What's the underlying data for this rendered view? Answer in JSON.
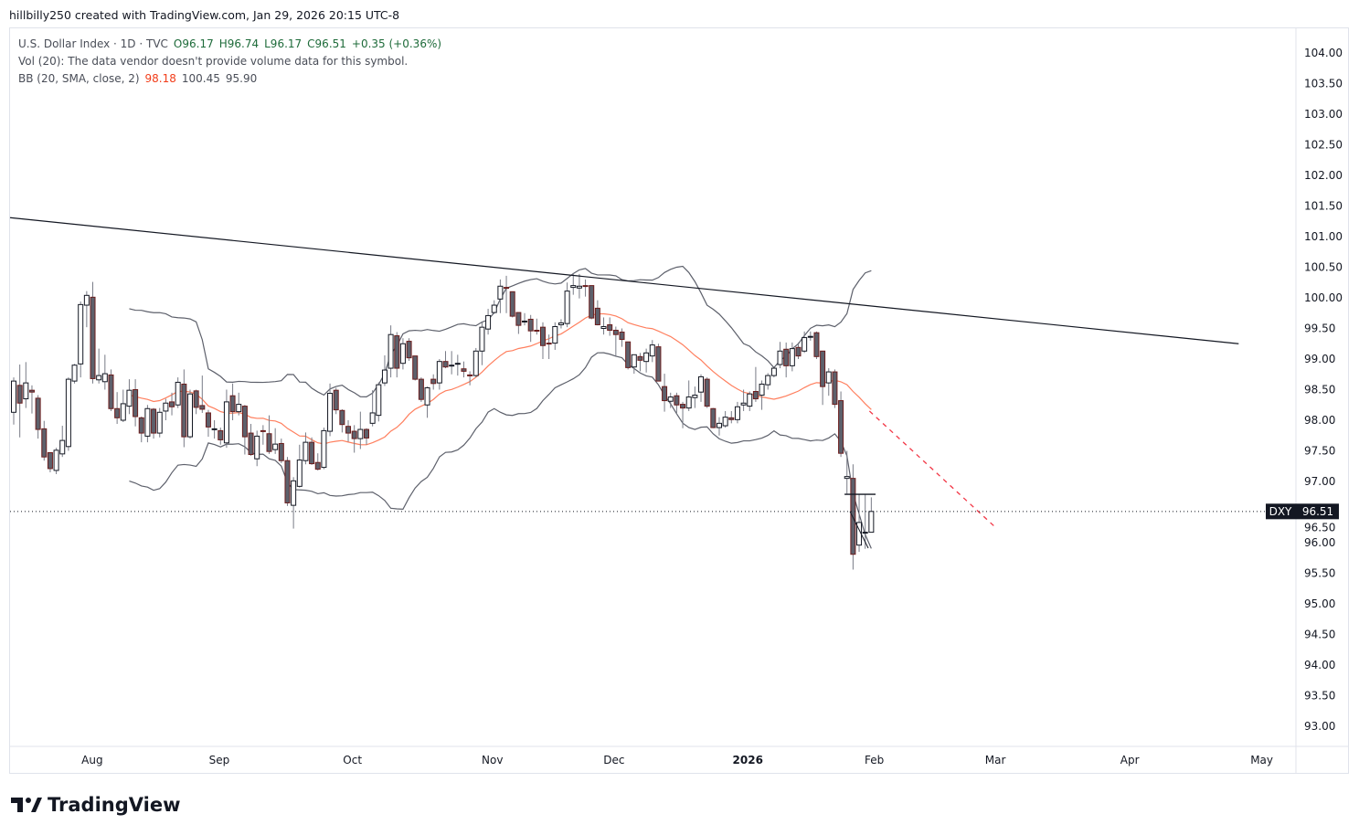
{
  "credit": "hillbilly250 created with TradingView.com, Jan 29, 2026 20:15 UTC-8",
  "legend": {
    "symbol": "U.S. Dollar Index · 1D · TVC",
    "open": "O96.17",
    "high": "H96.74",
    "low": "L96.17",
    "close": "C96.51",
    "change": "+0.35 (+0.36%)",
    "vol": "Vol (20): The data vendor doesn't provide volume data for this symbol.",
    "bb_label": "BB (20, SMA, close, 2)",
    "bb_basis": "98.18",
    "bb_upper": "100.45",
    "bb_lower": "95.90"
  },
  "price_label": {
    "symbol": "DXY",
    "value": "96.51"
  },
  "logo": "TradingView",
  "colors": {
    "up_fill": "#ffffff",
    "up_border": "#131722",
    "down_fill": "#5d606b",
    "down_border": "#6b1d1d",
    "wick": "#787b86",
    "bb_band": "#5d606b",
    "bb_basis": "#ff7f5e",
    "trendline": "#131722",
    "projection": "#f23645"
  },
  "chart_data": {
    "type": "candlestick",
    "title": "U.S. Dollar Index · 1D · TVC",
    "ylim": [
      92.6,
      104.4
    ],
    "y_ticks": [
      "104.00",
      "103.50",
      "103.00",
      "102.50",
      "102.00",
      "101.50",
      "101.00",
      "100.50",
      "100.00",
      "99.50",
      "99.00",
      "98.50",
      "98.00",
      "97.50",
      "97.00",
      "96.50",
      "96.00",
      "95.50",
      "95.00",
      "94.50",
      "94.00",
      "93.50",
      "93.00"
    ],
    "x_ticks": [
      {
        "label": "Aug",
        "bar": 12.9,
        "bold": false
      },
      {
        "label": "Sep",
        "bar": 33.8,
        "bold": false
      },
      {
        "label": "Oct",
        "bar": 55.7,
        "bold": false
      },
      {
        "label": "Nov",
        "bar": 78.7,
        "bold": false
      },
      {
        "label": "Dec",
        "bar": 98.7,
        "bold": false
      },
      {
        "label": "2026",
        "bar": 120.7,
        "bold": true
      },
      {
        "label": "Feb",
        "bar": 141.5,
        "bold": false
      },
      {
        "label": "Mar",
        "bar": 161.4,
        "bold": false
      },
      {
        "label": "Apr",
        "bar": 183.5,
        "bold": false
      },
      {
        "label": "May",
        "bar": 205.2,
        "bold": false
      }
    ],
    "bollinger": {
      "period": 20,
      "stddev": 2
    },
    "ohlc": [
      [
        98.13,
        98.7,
        97.93,
        98.64
      ],
      [
        98.57,
        98.91,
        97.72,
        98.28
      ],
      [
        98.35,
        98.95,
        98.2,
        98.61
      ],
      [
        98.49,
        98.57,
        98.11,
        98.46
      ],
      [
        98.36,
        98.41,
        97.7,
        97.85
      ],
      [
        97.86,
        97.99,
        97.34,
        97.4
      ],
      [
        97.47,
        97.47,
        97.15,
        97.21
      ],
      [
        97.18,
        97.55,
        97.12,
        97.51
      ],
      [
        97.45,
        97.91,
        97.4,
        97.67
      ],
      [
        97.57,
        98.7,
        97.5,
        98.67
      ],
      [
        98.64,
        98.92,
        98.6,
        98.9
      ],
      [
        98.92,
        99.94,
        98.7,
        99.89
      ],
      [
        99.88,
        100.11,
        99.52,
        100.04
      ],
      [
        100.01,
        100.26,
        98.6,
        98.68
      ],
      [
        98.66,
        99.17,
        98.6,
        98.73
      ],
      [
        98.63,
        99.07,
        98.5,
        98.76
      ],
      [
        98.74,
        98.83,
        98.15,
        98.19
      ],
      [
        98.19,
        98.46,
        97.94,
        98.04
      ],
      [
        98.0,
        98.5,
        97.97,
        98.27
      ],
      [
        98.23,
        98.67,
        98.1,
        98.49
      ],
      [
        98.5,
        98.67,
        97.9,
        98.06
      ],
      [
        98.04,
        98.06,
        97.64,
        97.79
      ],
      [
        97.74,
        98.25,
        97.64,
        98.19
      ],
      [
        98.18,
        98.2,
        97.7,
        97.79
      ],
      [
        97.79,
        98.2,
        97.72,
        98.13
      ],
      [
        98.15,
        98.35,
        98.0,
        98.28
      ],
      [
        98.3,
        98.45,
        98.08,
        98.22
      ],
      [
        98.25,
        98.7,
        98.2,
        98.62
      ],
      [
        98.59,
        98.83,
        97.56,
        97.73
      ],
      [
        97.73,
        98.5,
        97.7,
        98.43
      ],
      [
        98.48,
        98.5,
        98.1,
        98.21
      ],
      [
        98.24,
        98.73,
        98.12,
        98.18
      ],
      [
        98.12,
        98.17,
        97.73,
        97.89
      ],
      [
        97.86,
        98.0,
        97.7,
        97.86
      ],
      [
        97.83,
        97.88,
        97.6,
        97.68
      ],
      [
        97.63,
        98.5,
        97.55,
        98.3
      ],
      [
        98.4,
        98.6,
        98.0,
        98.14
      ],
      [
        98.14,
        98.45,
        98.08,
        98.26
      ],
      [
        98.23,
        98.25,
        97.44,
        97.73
      ],
      [
        97.79,
        97.94,
        97.42,
        97.44
      ],
      [
        97.37,
        97.83,
        97.25,
        97.74
      ],
      [
        97.83,
        97.92,
        97.6,
        97.82
      ],
      [
        97.78,
        98.08,
        97.45,
        97.49
      ],
      [
        97.52,
        97.87,
        97.45,
        97.61
      ],
      [
        97.62,
        97.7,
        97.3,
        97.34
      ],
      [
        97.34,
        97.4,
        96.6,
        96.65
      ],
      [
        96.61,
        97.07,
        96.23,
        97.01
      ],
      [
        96.92,
        97.6,
        96.9,
        97.35
      ],
      [
        97.34,
        97.8,
        97.28,
        97.64
      ],
      [
        97.64,
        97.72,
        97.27,
        97.29
      ],
      [
        97.31,
        97.46,
        97.18,
        97.2
      ],
      [
        97.23,
        97.88,
        97.2,
        97.83
      ],
      [
        97.82,
        98.6,
        97.74,
        98.44
      ],
      [
        98.49,
        98.53,
        98.1,
        98.17
      ],
      [
        98.16,
        98.18,
        97.8,
        97.93
      ],
      [
        97.9,
        98.0,
        97.65,
        97.79
      ],
      [
        97.82,
        97.92,
        97.47,
        97.7
      ],
      [
        97.7,
        98.14,
        97.53,
        97.85
      ],
      [
        97.85,
        97.87,
        97.6,
        97.71
      ],
      [
        97.95,
        98.49,
        97.9,
        98.12
      ],
      [
        98.08,
        98.62,
        97.98,
        98.58
      ],
      [
        98.61,
        99.06,
        98.56,
        98.82
      ],
      [
        98.85,
        99.55,
        98.7,
        99.4
      ],
      [
        99.38,
        99.44,
        98.7,
        98.85
      ],
      [
        98.93,
        99.34,
        98.83,
        99.25
      ],
      [
        99.29,
        99.34,
        98.97,
        99.02
      ],
      [
        99.05,
        99.05,
        98.65,
        98.67
      ],
      [
        98.67,
        98.7,
        98.3,
        98.34
      ],
      [
        98.25,
        98.55,
        98.04,
        98.53
      ],
      [
        98.67,
        98.75,
        98.5,
        98.6
      ],
      [
        98.61,
        99.0,
        98.5,
        98.96
      ],
      [
        98.96,
        99.13,
        98.85,
        98.87
      ],
      [
        98.9,
        99.13,
        98.75,
        98.9
      ],
      [
        98.93,
        99.07,
        98.73,
        98.93
      ],
      [
        98.84,
        98.96,
        98.7,
        98.8
      ],
      [
        98.74,
        98.8,
        98.57,
        98.73
      ],
      [
        98.73,
        99.18,
        98.7,
        99.13
      ],
      [
        99.13,
        99.6,
        98.9,
        99.52
      ],
      [
        99.49,
        99.82,
        99.4,
        99.71
      ],
      [
        99.76,
        99.96,
        99.74,
        99.88
      ],
      [
        99.98,
        100.3,
        99.75,
        100.19
      ],
      [
        100.17,
        100.36,
        99.75,
        100.16
      ],
      [
        100.1,
        100.1,
        99.68,
        99.7
      ],
      [
        99.76,
        99.76,
        99.41,
        99.55
      ],
      [
        99.62,
        99.75,
        99.55,
        99.62
      ],
      [
        99.65,
        99.72,
        99.28,
        99.46
      ],
      [
        99.47,
        99.66,
        99.4,
        99.46
      ],
      [
        99.52,
        99.6,
        99.0,
        99.22
      ],
      [
        99.26,
        99.4,
        99.0,
        99.25
      ],
      [
        99.26,
        99.6,
        99.15,
        99.53
      ],
      [
        99.56,
        99.65,
        99.5,
        99.59
      ],
      [
        99.58,
        100.25,
        99.52,
        100.11
      ],
      [
        100.17,
        100.4,
        100.05,
        100.2
      ],
      [
        100.16,
        100.39,
        99.99,
        100.19
      ],
      [
        100.2,
        100.3,
        100.02,
        100.19
      ],
      [
        100.2,
        100.2,
        99.65,
        99.67
      ],
      [
        99.83,
        99.96,
        99.55,
        99.56
      ],
      [
        99.5,
        99.68,
        99.4,
        99.53
      ],
      [
        99.56,
        99.68,
        99.38,
        99.47
      ],
      [
        99.47,
        99.53,
        99.05,
        99.4
      ],
      [
        99.44,
        99.5,
        99.2,
        99.32
      ],
      [
        99.28,
        99.28,
        98.83,
        98.86
      ],
      [
        98.87,
        99.07,
        98.76,
        99.07
      ],
      [
        99.04,
        99.1,
        98.8,
        98.98
      ],
      [
        98.96,
        99.17,
        98.78,
        99.1
      ],
      [
        99.05,
        99.31,
        98.95,
        99.23
      ],
      [
        99.2,
        99.25,
        98.64,
        98.64
      ],
      [
        98.55,
        98.76,
        98.14,
        98.32
      ],
      [
        98.31,
        98.45,
        98.2,
        98.38
      ],
      [
        98.4,
        98.45,
        98.1,
        98.25
      ],
      [
        98.26,
        98.3,
        97.87,
        98.2
      ],
      [
        98.2,
        98.65,
        98.15,
        98.38
      ],
      [
        98.37,
        98.55,
        98.2,
        98.41
      ],
      [
        98.46,
        98.75,
        98.3,
        98.71
      ],
      [
        98.67,
        98.7,
        98.2,
        98.23
      ],
      [
        98.19,
        98.2,
        97.87,
        97.88
      ],
      [
        97.88,
        98.05,
        97.75,
        97.95
      ],
      [
        97.91,
        98.15,
        97.88,
        98.05
      ],
      [
        98.04,
        98.15,
        97.95,
        98.01
      ],
      [
        98.01,
        98.3,
        97.95,
        98.22
      ],
      [
        98.25,
        98.5,
        98.15,
        98.28
      ],
      [
        98.23,
        98.47,
        98.15,
        98.43
      ],
      [
        98.47,
        98.87,
        98.3,
        98.35
      ],
      [
        98.41,
        98.65,
        98.17,
        98.59
      ],
      [
        98.58,
        98.77,
        98.5,
        98.73
      ],
      [
        98.73,
        98.85,
        98.7,
        98.85
      ],
      [
        98.91,
        99.28,
        98.85,
        99.13
      ],
      [
        99.16,
        99.27,
        98.7,
        98.89
      ],
      [
        98.89,
        99.27,
        98.8,
        99.17
      ],
      [
        99.19,
        99.27,
        99.0,
        99.05
      ],
      [
        99.13,
        99.45,
        99.1,
        99.35
      ],
      [
        99.37,
        99.45,
        99.3,
        99.37
      ],
      [
        99.43,
        99.45,
        99.0,
        99.04
      ],
      [
        99.13,
        99.13,
        98.25,
        98.55
      ],
      [
        98.61,
        98.85,
        98.4,
        98.79
      ],
      [
        98.79,
        98.83,
        98.2,
        98.26
      ],
      [
        98.32,
        98.47,
        97.4,
        97.46
      ],
      [
        97.05,
        97.5,
        96.8,
        97.08
      ],
      [
        97.05,
        97.28,
        95.56,
        95.81
      ],
      [
        95.96,
        96.79,
        95.85,
        96.33
      ],
      [
        96.16,
        96.79,
        95.9,
        96.17
      ],
      [
        96.17,
        96.74,
        96.17,
        96.51
      ]
    ],
    "drawings": {
      "trendline": [
        [
          -0.6,
          101.31
        ],
        [
          201.4,
          99.25
        ]
      ],
      "projection_dashed": [
        [
          140.7,
          98.15
        ],
        [
          161.2,
          96.27
        ]
      ],
      "horizontal_segment": [
        [
          136.6,
          96.79
        ],
        [
          141.7,
          96.79
        ]
      ],
      "thin_diagonal": [
        [
          137.5,
          96.51
        ],
        [
          140.5,
          95.91
        ]
      ]
    },
    "last_price": 96.51
  }
}
